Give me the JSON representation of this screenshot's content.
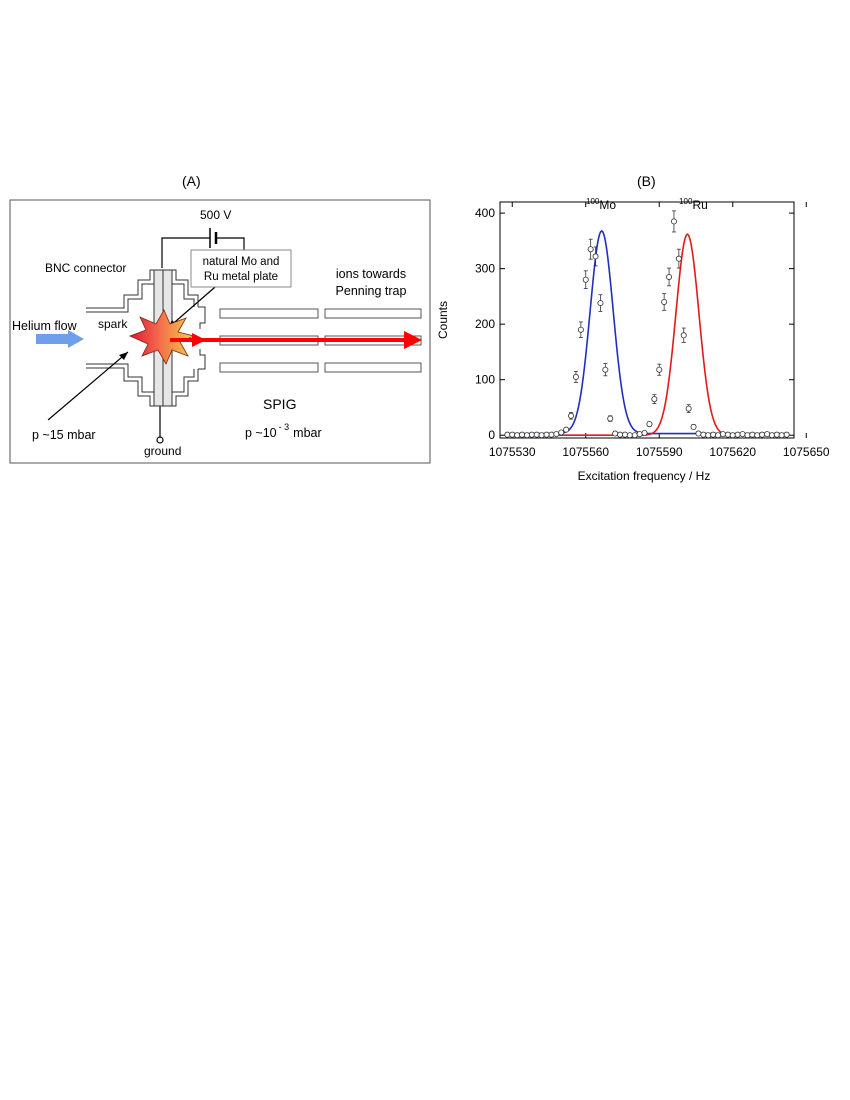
{
  "panel_a": {
    "label": "(A)",
    "voltage": "500 V",
    "bnc": "BNC connector",
    "target_line1": "natural Mo and",
    "target_line2": "Ru metal plate",
    "ions_line1": "ions towards",
    "ions_line2": "Penning trap",
    "helium": "Helium flow",
    "spark": "spark",
    "spig": "SPIG",
    "pressure_left": "p ~15 mbar",
    "pressure_right_base": "p ~10",
    "pressure_right_exp": "- 3",
    "pressure_right_unit": "mbar",
    "ground": "ground",
    "colors": {
      "helium_arrow": "#6f9fea",
      "ion_beam": "#ff0000"
    }
  },
  "panel_b": {
    "label": "(B)",
    "chart_data": {
      "type": "scatter",
      "xlabel": "Excitation frequency / Hz",
      "ylabel": "Counts",
      "xlim": [
        1075525,
        1075645
      ],
      "ylim": [
        -5,
        420
      ],
      "xticks": [
        1075530,
        1075560,
        1075590,
        1075620,
        1075650
      ],
      "xtick_labels": [
        "1075530",
        "1075560",
        "1075590",
        "1075620",
        "1075650"
      ],
      "yticks": [
        0,
        100,
        200,
        300,
        400
      ],
      "ytick_labels": [
        "0",
        "100",
        "200",
        "300",
        "400"
      ],
      "annotations": [
        {
          "mass": "100",
          "element": "Mo",
          "x": 1075565,
          "y": 400
        },
        {
          "mass": "100",
          "element": "Ru",
          "x": 1075603,
          "y": 400
        }
      ],
      "series": [
        {
          "color": "#1f2fbf",
          "fit": {
            "amplitude": 365,
            "center": 1075566.5,
            "sigma": 4.7,
            "baseline": 3
          },
          "x": [
            1075546,
            1075548,
            1075550,
            1075552,
            1075554,
            1075556,
            1075558,
            1075560,
            1075562,
            1075564,
            1075566,
            1075568,
            1075570,
            1075572,
            1075574,
            1075576,
            1075578
          ],
          "y": [
            1,
            2,
            5,
            10,
            35,
            105,
            190,
            280,
            335,
            322,
            238,
            118,
            30,
            3,
            1,
            1,
            0
          ],
          "err": [
            1,
            1,
            2,
            3,
            6,
            10,
            14,
            16,
            18,
            17,
            15,
            11,
            5,
            2,
            1,
            1,
            1
          ]
        },
        {
          "color": "#e11a1a",
          "fit": {
            "amplitude": 362,
            "center": 1075601.5,
            "sigma": 4.7,
            "baseline": 0
          },
          "x": [
            1075528,
            1075530,
            1075532,
            1075534,
            1075536,
            1075538,
            1075540,
            1075542,
            1075544,
            1075580,
            1075582,
            1075584,
            1075586,
            1075588,
            1075590,
            1075592,
            1075594,
            1075596,
            1075598,
            1075600,
            1075602,
            1075604,
            1075606,
            1075608,
            1075610,
            1075612,
            1075614,
            1075616,
            1075618,
            1075620,
            1075622,
            1075624,
            1075626,
            1075628,
            1075630,
            1075632,
            1075634,
            1075636,
            1075638,
            1075640,
            1075642
          ],
          "y": [
            1,
            1,
            0,
            1,
            0,
            1,
            1,
            0,
            1,
            0,
            2,
            4,
            20,
            65,
            118,
            240,
            285,
            385,
            318,
            180,
            48,
            15,
            3,
            1,
            0,
            1,
            0,
            2,
            1,
            0,
            1,
            2,
            0,
            1,
            0,
            1,
            2,
            0,
            1,
            0,
            1
          ],
          "err": [
            1,
            1,
            1,
            1,
            1,
            1,
            1,
            1,
            1,
            1,
            1,
            2,
            4,
            8,
            10,
            15,
            16,
            19,
            17,
            13,
            7,
            4,
            2,
            1,
            1,
            1,
            1,
            1,
            1,
            1,
            1,
            1,
            1,
            1,
            1,
            1,
            1,
            1,
            1,
            1,
            1
          ]
        }
      ]
    }
  }
}
